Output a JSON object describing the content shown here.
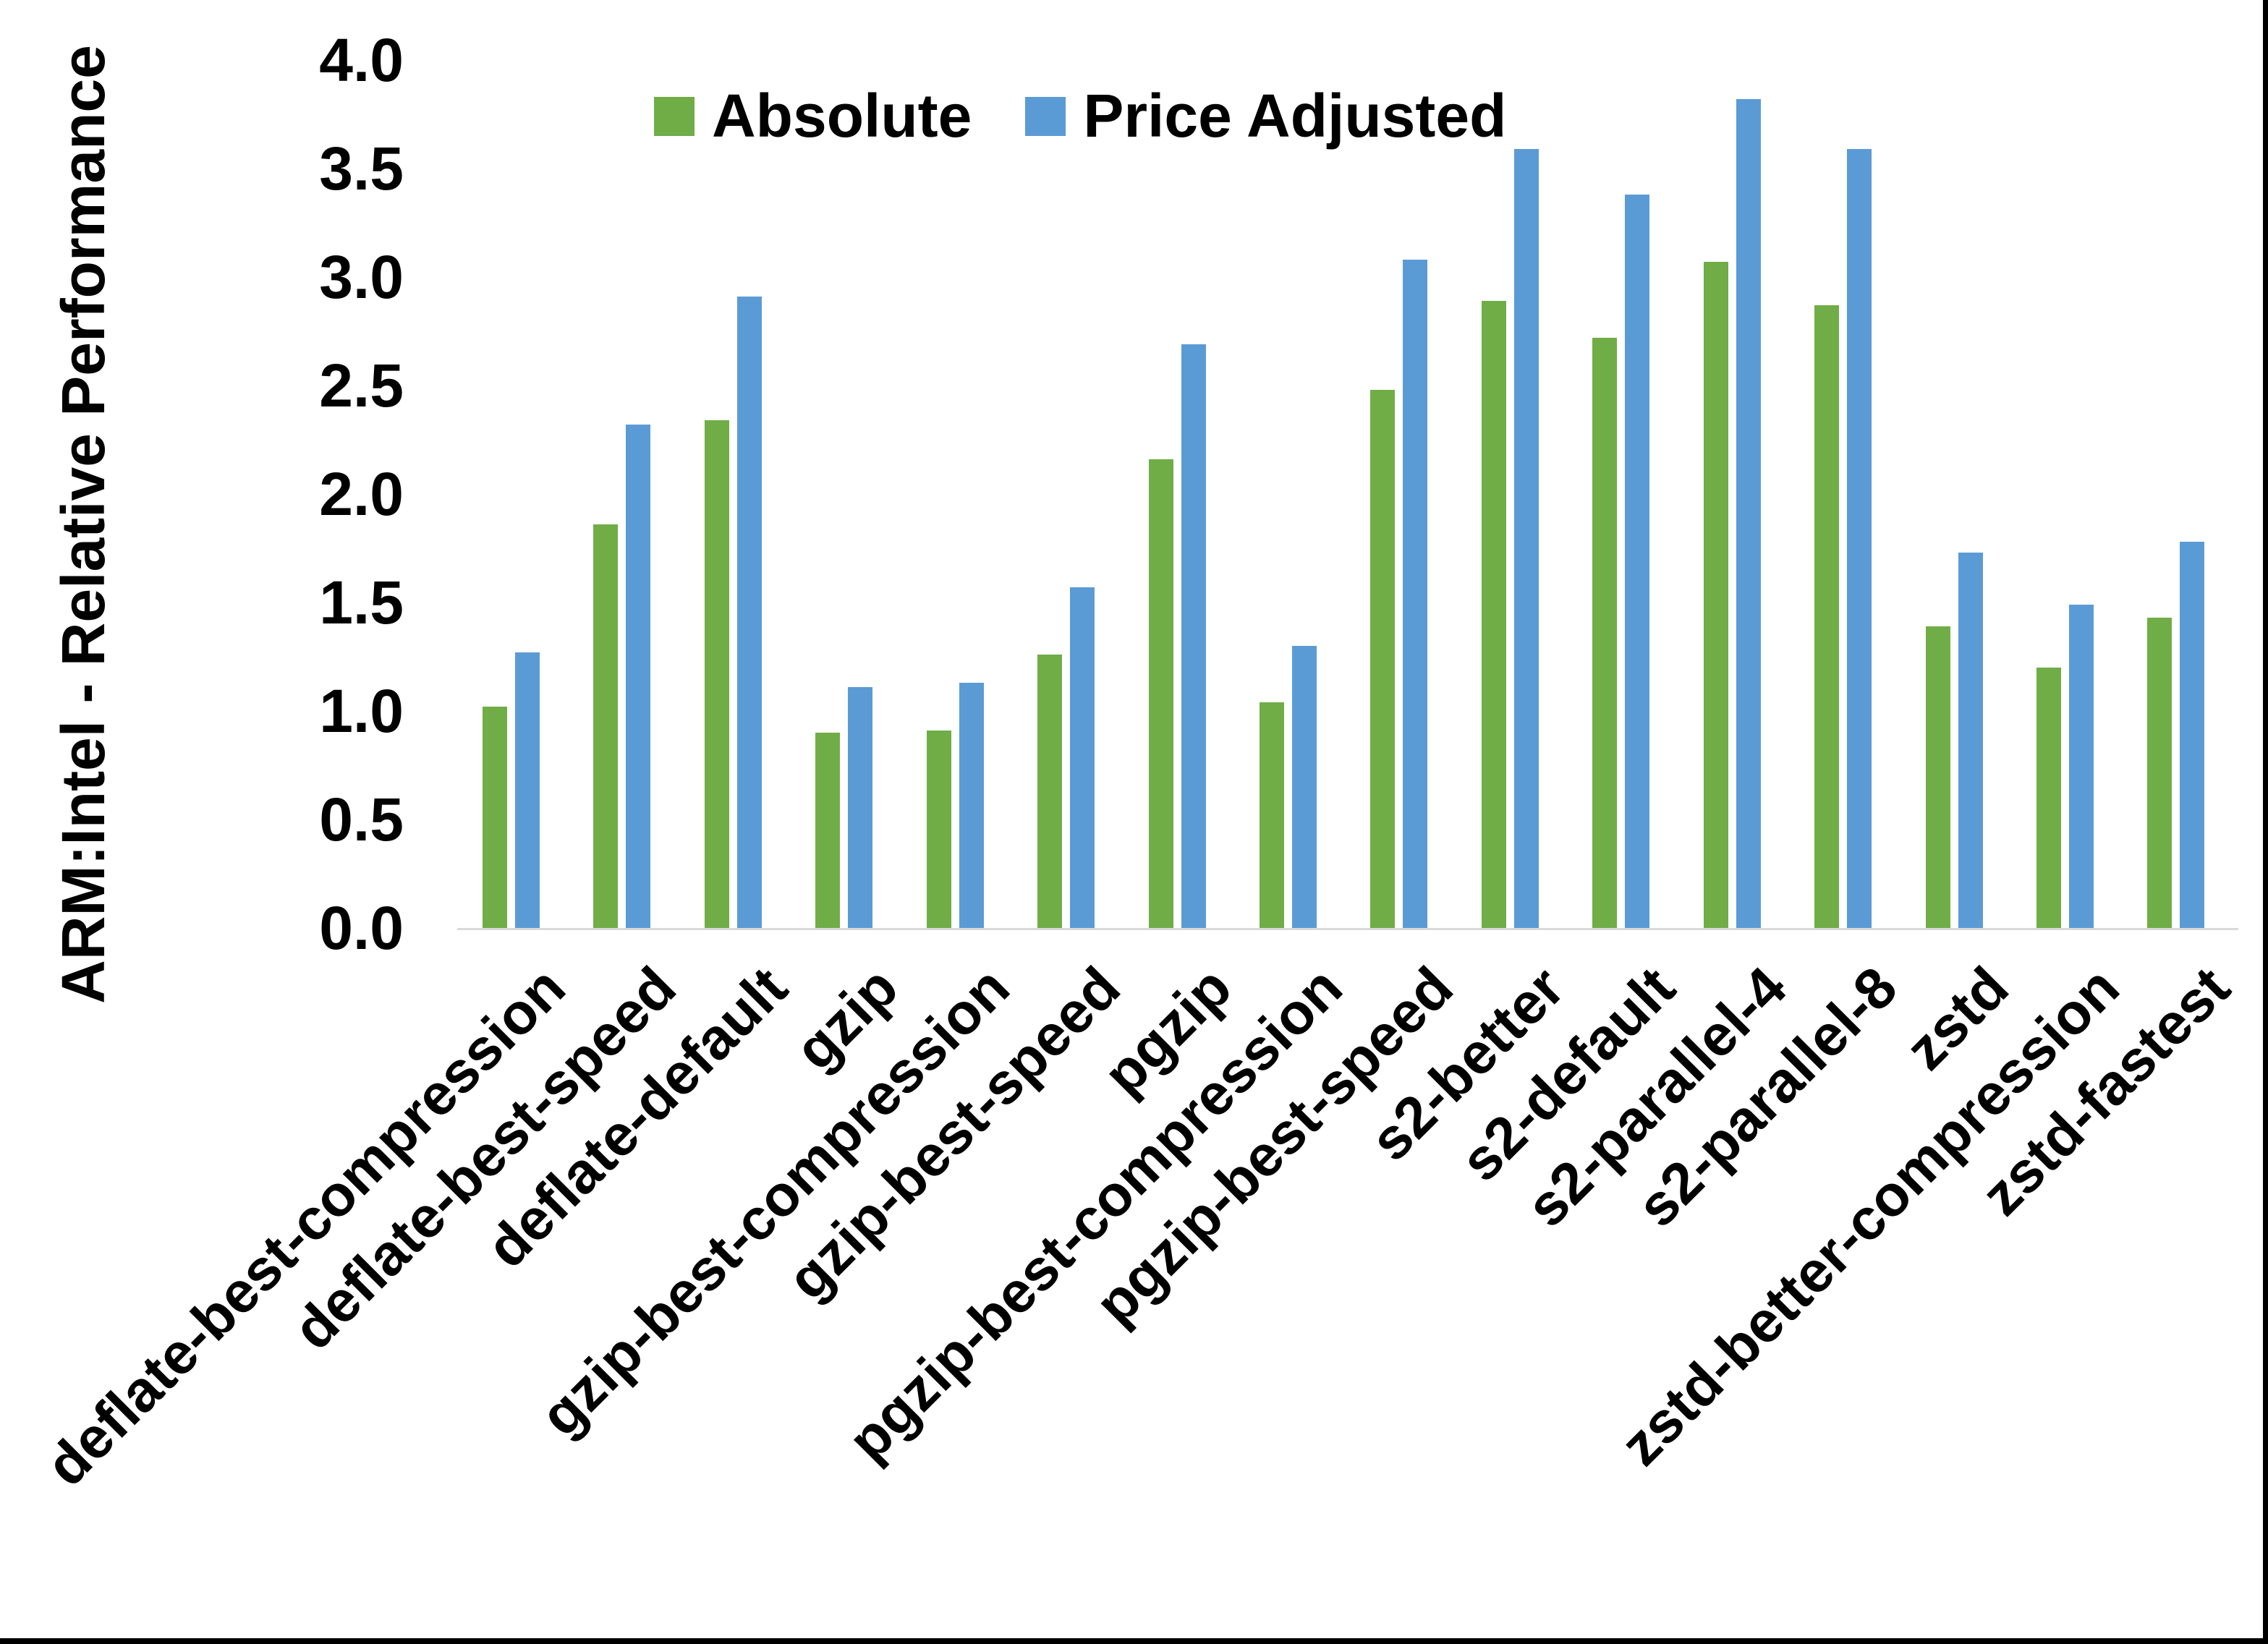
{
  "frame": {
    "right_border_color": "#000000",
    "bottom_border_color": "#000000"
  },
  "chart_data": {
    "type": "bar",
    "title": "",
    "ylabel": "ARM:Intel - Relative Performance",
    "xlabel": "",
    "ylim": [
      0.0,
      4.0
    ],
    "ytick_step": 0.5,
    "y_ticks": [
      "4.0",
      "3.5",
      "3.0",
      "2.5",
      "2.0",
      "1.5",
      "1.0",
      "0.5",
      "0.0"
    ],
    "grid": false,
    "legend_position": "top-center",
    "axis_line_color": "#D9D9D9",
    "categories": [
      "deflate-best-compression",
      "deflate-best-speed",
      "deflate-default",
      "gzip",
      "gzip-best-compression",
      "gzip-best-speed",
      "pgzip",
      "pgzip-best-compression",
      "pgzip-best-speed",
      "s2-better",
      "s2-default",
      "s2-parallel-4",
      "s2-parallel-8",
      "zstd",
      "zstd-better-compression",
      "zstd-fastest"
    ],
    "series": [
      {
        "name": "Absolute",
        "color": "#70AD47",
        "values": [
          1.02,
          1.86,
          2.34,
          0.9,
          0.91,
          1.26,
          2.16,
          1.04,
          2.48,
          2.89,
          2.72,
          3.07,
          2.87,
          1.39,
          1.2,
          1.43
        ]
      },
      {
        "name": "Price Adjusted",
        "color": "#5B9BD5",
        "values": [
          1.27,
          2.32,
          2.91,
          1.11,
          1.13,
          1.57,
          2.69,
          1.3,
          3.08,
          3.59,
          3.38,
          3.82,
          3.59,
          1.73,
          1.49,
          1.78
        ]
      }
    ]
  }
}
